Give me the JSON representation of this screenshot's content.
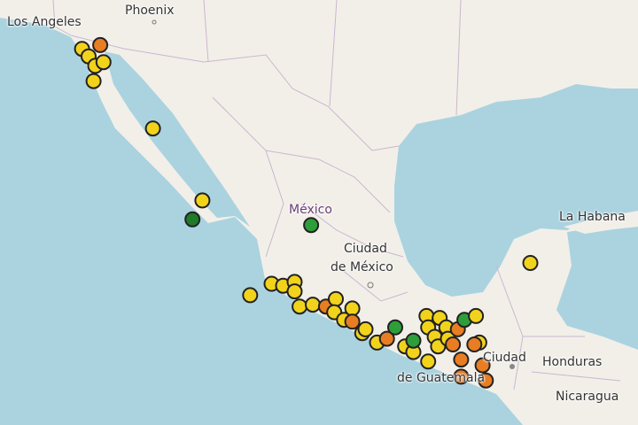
{
  "map": {
    "ocean_color": "#aad3df",
    "land_color": "#f2efe9",
    "border_color": "#c9b7cf",
    "labels": {
      "los_angeles": "Los Angeles",
      "phoenix": "Phoenix",
      "mexico_state": "México",
      "ciudad_de_mexico_1": "Ciudad",
      "ciudad_de_mexico_2": "de México",
      "la_habana": "La Habana",
      "ciudad_guatemala_1": "Ciudad",
      "ciudad_guatemala_2": "de Guatemala",
      "honduras": "Honduras",
      "nicaragua": "Nicaragua"
    }
  },
  "marker_colors": {
    "yellow": "#f2d31b",
    "orange": "#e87d22",
    "green": "#2e9e3a",
    "darkgreen": "#1f7a2a"
  },
  "markers": [
    {
      "lat": 31.9,
      "lon": -116.5,
      "color": "yellow"
    },
    {
      "lat": 32.1,
      "lon": -115.4,
      "color": "orange"
    },
    {
      "lat": 31.5,
      "lon": -116.1,
      "color": "yellow"
    },
    {
      "lat": 31.0,
      "lon": -115.7,
      "color": "yellow"
    },
    {
      "lat": 31.2,
      "lon": -115.2,
      "color": "yellow"
    },
    {
      "lat": 30.2,
      "lon": -115.8,
      "color": "yellow"
    },
    {
      "lat": 27.7,
      "lon": -112.2,
      "color": "yellow"
    },
    {
      "lat": 23.9,
      "lon": -109.2,
      "color": "yellow"
    },
    {
      "lat": 22.9,
      "lon": -109.8,
      "color": "darkgreen"
    },
    {
      "lat": 22.6,
      "lon": -102.6,
      "color": "green"
    },
    {
      "lat": 20.6,
      "lon": -89.3,
      "color": "yellow"
    },
    {
      "lat": 18.9,
      "lon": -106.3,
      "color": "yellow"
    },
    {
      "lat": 19.5,
      "lon": -105.0,
      "color": "yellow"
    },
    {
      "lat": 19.4,
      "lon": -104.3,
      "color": "yellow"
    },
    {
      "lat": 19.6,
      "lon": -103.6,
      "color": "yellow"
    },
    {
      "lat": 19.1,
      "lon": -103.6,
      "color": "yellow"
    },
    {
      "lat": 18.3,
      "lon": -103.3,
      "color": "yellow"
    },
    {
      "lat": 18.4,
      "lon": -102.5,
      "color": "yellow"
    },
    {
      "lat": 18.3,
      "lon": -101.7,
      "color": "orange"
    },
    {
      "lat": 18.7,
      "lon": -101.1,
      "color": "yellow"
    },
    {
      "lat": 18.0,
      "lon": -101.2,
      "color": "yellow"
    },
    {
      "lat": 17.6,
      "lon": -100.6,
      "color": "yellow"
    },
    {
      "lat": 18.2,
      "lon": -100.1,
      "color": "yellow"
    },
    {
      "lat": 17.5,
      "lon": -100.1,
      "color": "orange"
    },
    {
      "lat": 16.9,
      "lon": -99.5,
      "color": "yellow"
    },
    {
      "lat": 17.1,
      "lon": -99.3,
      "color": "yellow"
    },
    {
      "lat": 16.4,
      "lon": -98.6,
      "color": "yellow"
    },
    {
      "lat": 16.6,
      "lon": -98.0,
      "color": "orange"
    },
    {
      "lat": 17.2,
      "lon": -97.5,
      "color": "green"
    },
    {
      "lat": 16.2,
      "lon": -96.9,
      "color": "yellow"
    },
    {
      "lat": 15.9,
      "lon": -96.4,
      "color": "yellow"
    },
    {
      "lat": 16.5,
      "lon": -96.4,
      "color": "green"
    },
    {
      "lat": 15.4,
      "lon": -95.5,
      "color": "yellow"
    },
    {
      "lat": 17.8,
      "lon": -95.6,
      "color": "yellow"
    },
    {
      "lat": 17.7,
      "lon": -94.8,
      "color": "yellow"
    },
    {
      "lat": 17.2,
      "lon": -95.5,
      "color": "yellow"
    },
    {
      "lat": 16.7,
      "lon": -95.1,
      "color": "yellow"
    },
    {
      "lat": 16.2,
      "lon": -94.9,
      "color": "yellow"
    },
    {
      "lat": 17.2,
      "lon": -94.4,
      "color": "yellow"
    },
    {
      "lat": 16.6,
      "lon": -94.3,
      "color": "yellow"
    },
    {
      "lat": 17.1,
      "lon": -93.7,
      "color": "orange"
    },
    {
      "lat": 17.6,
      "lon": -93.3,
      "color": "green"
    },
    {
      "lat": 17.8,
      "lon": -92.6,
      "color": "yellow"
    },
    {
      "lat": 16.4,
      "lon": -92.4,
      "color": "yellow"
    },
    {
      "lat": 16.3,
      "lon": -94.0,
      "color": "orange"
    },
    {
      "lat": 15.5,
      "lon": -93.5,
      "color": "orange"
    },
    {
      "lat": 16.3,
      "lon": -92.7,
      "color": "orange"
    },
    {
      "lat": 14.6,
      "lon": -93.5,
      "color": "orange"
    },
    {
      "lat": 15.2,
      "lon": -92.2,
      "color": "orange"
    },
    {
      "lat": 14.4,
      "lon": -92.0,
      "color": "orange"
    }
  ]
}
